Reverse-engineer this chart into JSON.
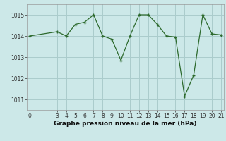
{
  "x_data": [
    0,
    3,
    4,
    5,
    6,
    7,
    8,
    9,
    10,
    11,
    12,
    13,
    14,
    15,
    16,
    17,
    18,
    19,
    20,
    21
  ],
  "y_data": [
    1014.0,
    1014.2,
    1014.0,
    1014.55,
    1014.65,
    1015.0,
    1014.0,
    1013.85,
    1012.85,
    1014.0,
    1015.0,
    1015.0,
    1014.55,
    1014.0,
    1013.95,
    1011.15,
    1012.15,
    1015.0,
    1014.1,
    1014.05
  ],
  "line_color": "#2d6a2d",
  "marker_color": "#2d6a2d",
  "bg_color": "#cce8e8",
  "grid_color": "#aacccc",
  "xlabel": "Graphe pression niveau de la mer (hPa)",
  "yticks": [
    1011,
    1012,
    1013,
    1014,
    1015
  ],
  "xticks": [
    0,
    3,
    4,
    5,
    6,
    7,
    8,
    9,
    10,
    11,
    12,
    13,
    14,
    15,
    16,
    17,
    18,
    19,
    20,
    21
  ],
  "ylim": [
    1010.5,
    1015.5
  ],
  "xlim": [
    -0.3,
    21.3
  ],
  "tick_fontsize": 5.5,
  "xlabel_fontsize": 6.5
}
